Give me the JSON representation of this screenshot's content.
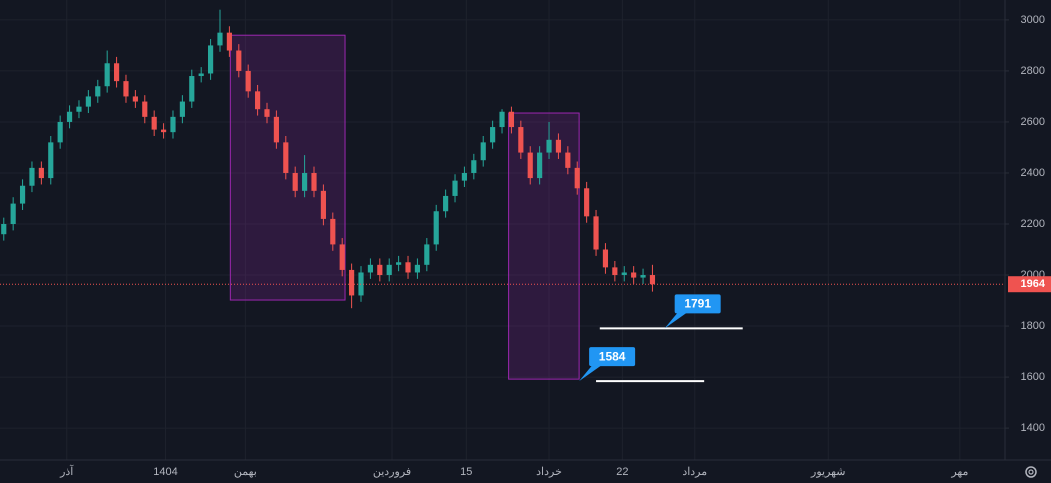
{
  "chart_data": {
    "type": "candlestick",
    "up_color": "#26a69a",
    "down_color": "#ef5350",
    "open": [
      2160,
      2200,
      2280,
      2350,
      2420,
      2380,
      2520,
      2600,
      2640,
      2660,
      2700,
      2740,
      2830,
      2760,
      2700,
      2680,
      2620,
      2570,
      2560,
      2620,
      2680,
      2780,
      2790,
      2900,
      2950,
      2880,
      2800,
      2720,
      2650,
      2620,
      2520,
      2400,
      2330,
      2400,
      2330,
      2220,
      2120,
      2020,
      1920,
      2010,
      2040,
      2000,
      2040,
      2050,
      2010,
      2040,
      2120,
      2250,
      2310,
      2370,
      2400,
      2450,
      2520,
      2580,
      2640,
      2580,
      2480,
      2380,
      2480,
      2530,
      2480,
      2420,
      2340,
      2230,
      2100,
      2030,
      2000,
      2010,
      1990,
      2000
    ],
    "high": [
      2225,
      2305,
      2375,
      2445,
      2445,
      2545,
      2625,
      2665,
      2685,
      2725,
      2765,
      2880,
      2855,
      2785,
      2725,
      2705,
      2645,
      2595,
      2645,
      2705,
      2805,
      2815,
      2925,
      3040,
      2975,
      2905,
      2825,
      2745,
      2675,
      2645,
      2545,
      2425,
      2470,
      2425,
      2355,
      2245,
      2145,
      2045,
      2035,
      2065,
      2065,
      2065,
      2075,
      2075,
      2065,
      2145,
      2275,
      2335,
      2395,
      2425,
      2475,
      2545,
      2605,
      2650,
      2660,
      2605,
      2505,
      2505,
      2600,
      2555,
      2505,
      2445,
      2365,
      2255,
      2125,
      2055,
      2035,
      2035,
      2025,
      2040
    ],
    "low": [
      2135,
      2175,
      2255,
      2325,
      2355,
      2355,
      2495,
      2575,
      2615,
      2635,
      2675,
      2715,
      2735,
      2675,
      2655,
      2595,
      2545,
      2535,
      2535,
      2595,
      2655,
      2755,
      2765,
      2875,
      2855,
      2775,
      2695,
      2625,
      2595,
      2495,
      2375,
      2305,
      2305,
      2305,
      2195,
      2095,
      1995,
      1870,
      1895,
      1985,
      1975,
      1975,
      2015,
      1985,
      1985,
      2015,
      2095,
      2225,
      2285,
      2345,
      2375,
      2425,
      2495,
      2555,
      2555,
      2455,
      2355,
      2355,
      2455,
      2455,
      2395,
      2315,
      2205,
      2075,
      2005,
      1975,
      1975,
      1965,
      1965,
      1935
    ],
    "close": [
      2200,
      2280,
      2350,
      2420,
      2380,
      2520,
      2600,
      2640,
      2660,
      2700,
      2740,
      2830,
      2760,
      2700,
      2680,
      2620,
      2570,
      2560,
      2620,
      2680,
      2780,
      2790,
      2900,
      2950,
      2880,
      2800,
      2720,
      2650,
      2620,
      2520,
      2400,
      2330,
      2400,
      2330,
      2220,
      2120,
      2020,
      1920,
      2010,
      2040,
      2000,
      2040,
      2050,
      2010,
      2040,
      2120,
      2250,
      2310,
      2370,
      2400,
      2450,
      2520,
      2580,
      2640,
      2580,
      2480,
      2380,
      2480,
      2530,
      2480,
      2420,
      2340,
      2230,
      2100,
      2030,
      2000,
      2010,
      1990,
      2000,
      1964
    ],
    "last_price": 1964,
    "ylim": [
      1275,
      3078
    ],
    "yticks": [
      1400,
      1600,
      1800,
      2000,
      2200,
      2400,
      2600,
      2800,
      3000
    ],
    "xlim": [
      -0.4,
      106.5
    ],
    "xticks": [
      {
        "value": 6.7,
        "label": "آذر"
      },
      {
        "value": 17.2,
        "label": "1404"
      },
      {
        "value": 25.7,
        "label": "بهمن"
      },
      {
        "value": 41.3,
        "label": "فروردین"
      },
      {
        "value": 49.2,
        "label": "15"
      },
      {
        "value": 58,
        "label": "خرداد"
      },
      {
        "value": 65.8,
        "label": "22"
      },
      {
        "value": 73.5,
        "label": "مرداد"
      },
      {
        "value": 87.7,
        "label": "شهریور"
      },
      {
        "value": 101.7,
        "label": "مهر"
      }
    ],
    "boxes": [
      {
        "x": [
          24.1,
          36.3
        ],
        "y": [
          1902,
          2940
        ]
      },
      {
        "x": [
          53.7,
          61.2
        ],
        "y": [
          1592,
          2635
        ]
      }
    ],
    "levels": [
      {
        "value": 1791,
        "x": [
          63.4,
          78.6
        ],
        "tip": 70.3
      },
      {
        "value": 1584,
        "x": [
          63,
          74.5
        ],
        "tip": 61.2
      }
    ],
    "grid": true
  }
}
